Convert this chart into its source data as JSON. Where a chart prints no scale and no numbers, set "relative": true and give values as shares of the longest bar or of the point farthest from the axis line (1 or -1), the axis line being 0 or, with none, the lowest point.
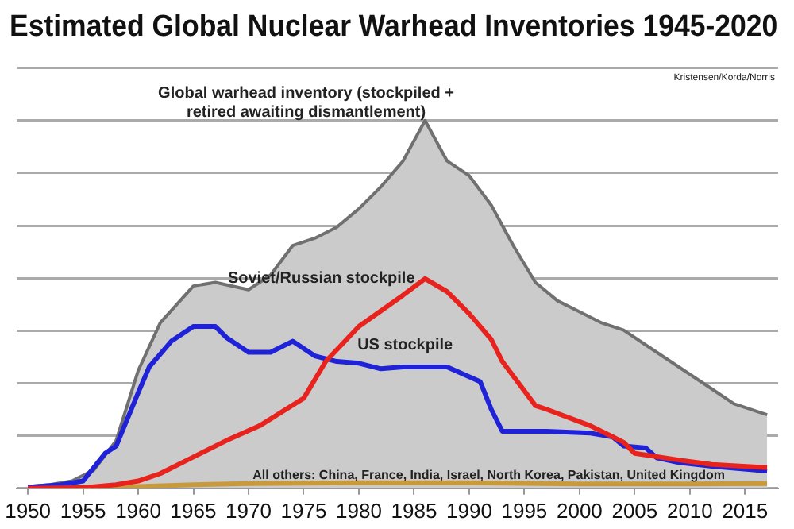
{
  "chart_data": {
    "type": "line",
    "title": "Estimated Global Nuclear Warhead Inventories 1945-2020",
    "relative": true,
    "xlim": [
      1949,
      2018
    ],
    "xticks": [
      1950,
      1955,
      1960,
      1965,
      1970,
      1975,
      1980,
      1985,
      1990,
      1995,
      2000,
      2005,
      2010,
      2015
    ],
    "grid": "y",
    "legend": false,
    "marker": "none",
    "annotations": [
      "Kristensen/Korda/Norris"
    ],
    "series": [
      {
        "name": "Global warhead inventory (stockpiled + retired awaiting dismantlement)",
        "type": "area",
        "color": "#707070",
        "x": [
          1950,
          1952,
          1954,
          1956,
          1958,
          1960,
          1962,
          1965,
          1967,
          1970,
          1972,
          1974,
          1976,
          1978,
          1980,
          1982,
          1984,
          1986,
          1988,
          1990,
          1992,
          1994,
          1996,
          1998,
          2000,
          2002,
          2004,
          2006,
          2008,
          2010,
          2012,
          2014,
          2016,
          2017
        ],
        "values": [
          0.005,
          0.01,
          0.02,
          0.05,
          0.13,
          0.32,
          0.45,
          0.55,
          0.56,
          0.54,
          0.58,
          0.66,
          0.68,
          0.71,
          0.76,
          0.82,
          0.89,
          1,
          0.89,
          0.85,
          0.77,
          0.66,
          0.56,
          0.51,
          0.48,
          0.45,
          0.43,
          0.39,
          0.35,
          0.31,
          0.27,
          0.23,
          0.21,
          0.2
        ]
      },
      {
        "name": "Soviet/Russian stockpile",
        "color": "#e8221c",
        "x": [
          1950,
          1955,
          1958,
          1960,
          1962,
          1965,
          1968,
          1971,
          1975,
          1977,
          1980,
          1984,
          1986,
          1988,
          1990,
          1992,
          1993,
          1996,
          1997,
          2001,
          2004,
          2005,
          2009,
          2012,
          2017
        ],
        "values": [
          0,
          0.002,
          0.01,
          0.02,
          0.04,
          0.085,
          0.13,
          0.17,
          0.245,
          0.345,
          0.44,
          0.525,
          0.57,
          0.535,
          0.475,
          0.405,
          0.345,
          0.225,
          0.215,
          0.17,
          0.125,
          0.095,
          0.077,
          0.065,
          0.056
        ]
      },
      {
        "name": "US stockpile",
        "color": "#1f22d6",
        "x": [
          1950,
          1953,
          1955,
          1957,
          1958,
          1960,
          1961,
          1963,
          1965,
          1967,
          1968,
          1970,
          1972,
          1974,
          1976,
          1978,
          1980,
          1982,
          1984,
          1988,
          1991,
          1992,
          1993,
          1997,
          2001,
          2003,
          2004,
          2006,
          2007,
          2009,
          2012,
          2017
        ],
        "values": [
          0.003,
          0.01,
          0.02,
          0.095,
          0.115,
          0.26,
          0.33,
          0.4,
          0.44,
          0.44,
          0.41,
          0.37,
          0.37,
          0.4,
          0.36,
          0.345,
          0.34,
          0.325,
          0.33,
          0.33,
          0.29,
          0.215,
          0.155,
          0.155,
          0.15,
          0.14,
          0.115,
          0.11,
          0.083,
          0.07,
          0.06,
          0.047
        ]
      },
      {
        "name": "All others: China, France, India, Israel, North Korea, Pakistan, United Kingdom",
        "color": "#c89a3c",
        "x": [
          1950,
          1955,
          1960,
          1965,
          1970,
          1980,
          1990,
          2000,
          2010,
          2017
        ],
        "values": [
          0,
          0.002,
          0.005,
          0.01,
          0.013,
          0.015,
          0.015,
          0.012,
          0.012,
          0.013
        ]
      }
    ]
  }
}
